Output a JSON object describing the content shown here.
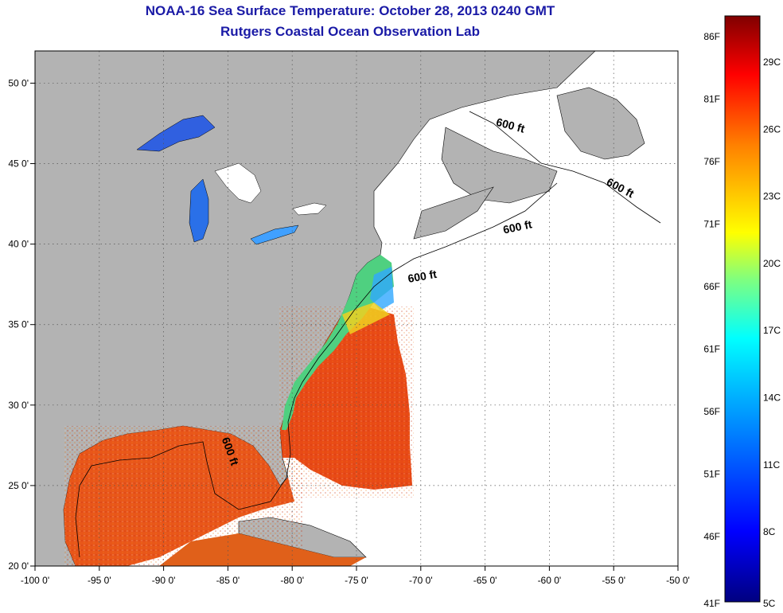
{
  "title": {
    "line1": "NOAA-16 Sea Surface Temperature:  October 28, 2013 0240 GMT",
    "line2": "Rutgers Coastal Ocean Observation Lab"
  },
  "map": {
    "lon_range": [
      -100,
      -50
    ],
    "lat_range": [
      20,
      52
    ],
    "lon_ticks": [
      {
        "value": -100,
        "label": "-100 0'"
      },
      {
        "value": -95,
        "label": "-95 0'"
      },
      {
        "value": -90,
        "label": "-90 0'"
      },
      {
        "value": -85,
        "label": "-85 0'"
      },
      {
        "value": -80,
        "label": "-80 0'"
      },
      {
        "value": -75,
        "label": "-75 0'"
      },
      {
        "value": -70,
        "label": "-70 0'"
      },
      {
        "value": -65,
        "label": "-65 0'"
      },
      {
        "value": -60,
        "label": "-60 0'"
      },
      {
        "value": -55,
        "label": "-55 0'"
      },
      {
        "value": -50,
        "label": "-50 0'"
      }
    ],
    "lat_ticks": [
      {
        "value": 20,
        "label": "20 0'"
      },
      {
        "value": 25,
        "label": "25 0'"
      },
      {
        "value": 30,
        "label": "30 0'"
      },
      {
        "value": 35,
        "label": "35 0'"
      },
      {
        "value": 40,
        "label": "40 0'"
      },
      {
        "value": 45,
        "label": "45 0'"
      },
      {
        "value": 50,
        "label": "50 0'"
      }
    ],
    "contour_labels": [
      "600 ft",
      "600 ft",
      "600 ft",
      "600 ft",
      "600 ft"
    ],
    "grid": true,
    "land_color": "#b3b3b3",
    "no_data_color": "#ffffff"
  },
  "colorbar": {
    "fahrenheit_labels": [
      "86F",
      "81F",
      "76F",
      "71F",
      "66F",
      "61F",
      "56F",
      "51F",
      "46F",
      "41F"
    ],
    "celsius_labels": [
      "29C",
      "26C",
      "23C",
      "20C",
      "17C",
      "14C",
      "11C",
      "8C",
      "5C"
    ],
    "colors": [
      "#000080",
      "#0000ff",
      "#00bfff",
      "#00ffff",
      "#7fff7f",
      "#ffff00",
      "#ff8000",
      "#ff0000",
      "#800000"
    ]
  }
}
